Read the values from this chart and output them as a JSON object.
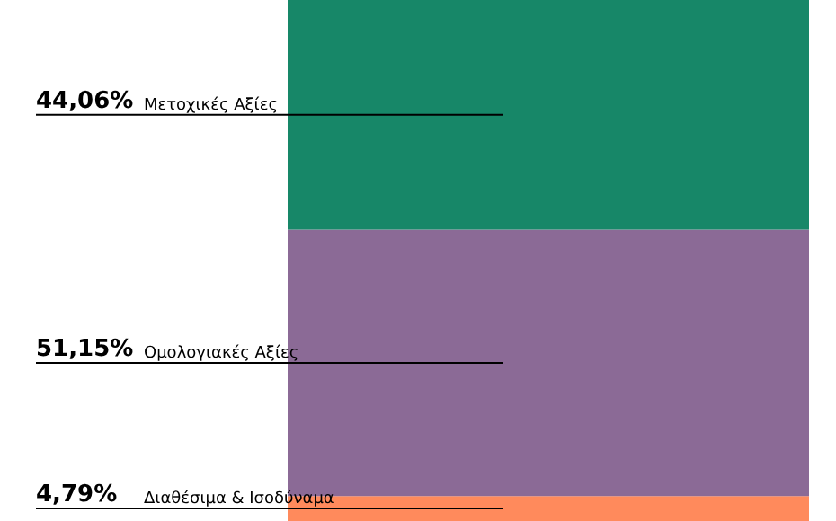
{
  "chart_data": {
    "type": "bar",
    "stacked": true,
    "categories": [
      null
    ],
    "series": [
      {
        "name": "Διαθέσιμα & Ισοδύναμα",
        "color": "#ff8a5c",
        "values": [
          4.79
        ],
        "value_labels": [
          "4,79%"
        ]
      },
      {
        "name": "Ομολογιακές Αξίες",
        "color": "#8b6a96",
        "values": [
          51.15
        ],
        "value_labels": [
          "51,15%"
        ]
      },
      {
        "name": "Μετοχικές Αξίες",
        "color": "#178768",
        "values": [
          44.06
        ],
        "value_labels": [
          "44,06%"
        ]
      }
    ]
  }
}
